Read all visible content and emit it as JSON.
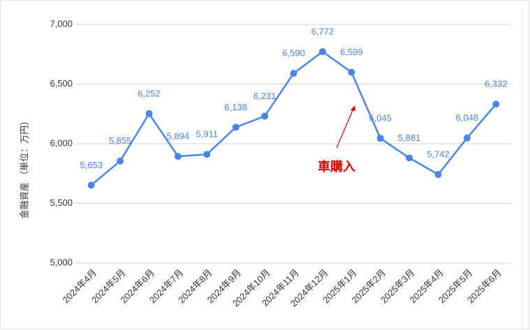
{
  "chart_data": {
    "type": "line",
    "y_label": "金融資産 （単位：万円）",
    "categories": [
      "2024年4月",
      "2024年5月",
      "2024年6月",
      "2024年7月",
      "2024年8月",
      "2024年9月",
      "2024年10月",
      "2024年11月",
      "2024年12月",
      "2025年1月",
      "2025年2月",
      "2025年3月",
      "2025年4月",
      "2025年5月",
      "2025年6月"
    ],
    "series": [
      {
        "name": "金融資産",
        "color": "#4a86e8",
        "values": [
          5653,
          5855,
          6252,
          5894,
          5911,
          6138,
          6231,
          6590,
          6772,
          6599,
          6045,
          5881,
          5742,
          6048,
          6332
        ],
        "value_labels": [
          "5,653",
          "5,855",
          "6,252",
          "5,894",
          "5,911",
          "6,138",
          "6,231",
          "6,590",
          "6,772",
          "6,599",
          "6,045",
          "5,881",
          "5,742",
          "6,048",
          "6,332"
        ]
      }
    ],
    "ylim": [
      5000,
      7000
    ],
    "yticks": [
      {
        "value": 5000,
        "label": "5,000"
      },
      {
        "value": 5500,
        "label": "5,500"
      },
      {
        "value": 6000,
        "label": "6,000"
      },
      {
        "value": 6500,
        "label": "6,500"
      },
      {
        "value": 7000,
        "label": "7,000"
      }
    ],
    "grid": true,
    "annotation": "車購入",
    "annotation_color": "#e00000"
  }
}
